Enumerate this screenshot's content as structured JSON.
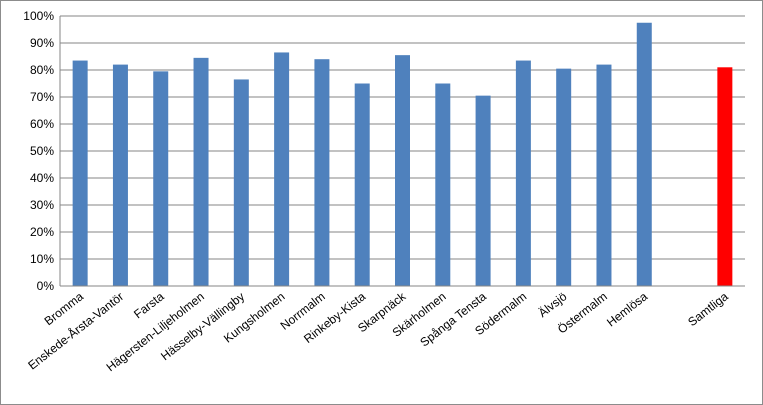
{
  "chart_data": {
    "type": "bar",
    "categories": [
      "Bromma",
      "Enskede-Årsta-Vantör",
      "Farsta",
      "Hägersten-Liljeholmen",
      "Hässelby-Vällingby",
      "Kungsholmen",
      "Norrmalm",
      "Rinkeby-Kista",
      "Skarpnäck",
      "Skärholmen",
      "Spånga Tensta",
      "Södermalm",
      "Älvsjö",
      "Östermalm",
      "Hemlösa",
      "",
      "Samtliga"
    ],
    "values": [
      83.5,
      82,
      79.5,
      84.5,
      76.5,
      86.5,
      84,
      75,
      85.5,
      75,
      70.5,
      83.5,
      80.5,
      82,
      97.5,
      null,
      81
    ],
    "colors": [
      "#4f81bd",
      "#4f81bd",
      "#4f81bd",
      "#4f81bd",
      "#4f81bd",
      "#4f81bd",
      "#4f81bd",
      "#4f81bd",
      "#4f81bd",
      "#4f81bd",
      "#4f81bd",
      "#4f81bd",
      "#4f81bd",
      "#4f81bd",
      "#4f81bd",
      "#4f81bd",
      "#ff0000"
    ],
    "yticks": [
      "0%",
      "10%",
      "20%",
      "30%",
      "40%",
      "50%",
      "60%",
      "70%",
      "80%",
      "90%",
      "100%"
    ],
    "ylim": [
      0,
      100
    ],
    "title": "",
    "xlabel": "",
    "ylabel": "",
    "grid": true,
    "legend": "none"
  },
  "colors": {
    "bar": "#4f81bd",
    "highlight": "#ff0000",
    "grid": "#868686",
    "frame": "#8c8c8c"
  }
}
